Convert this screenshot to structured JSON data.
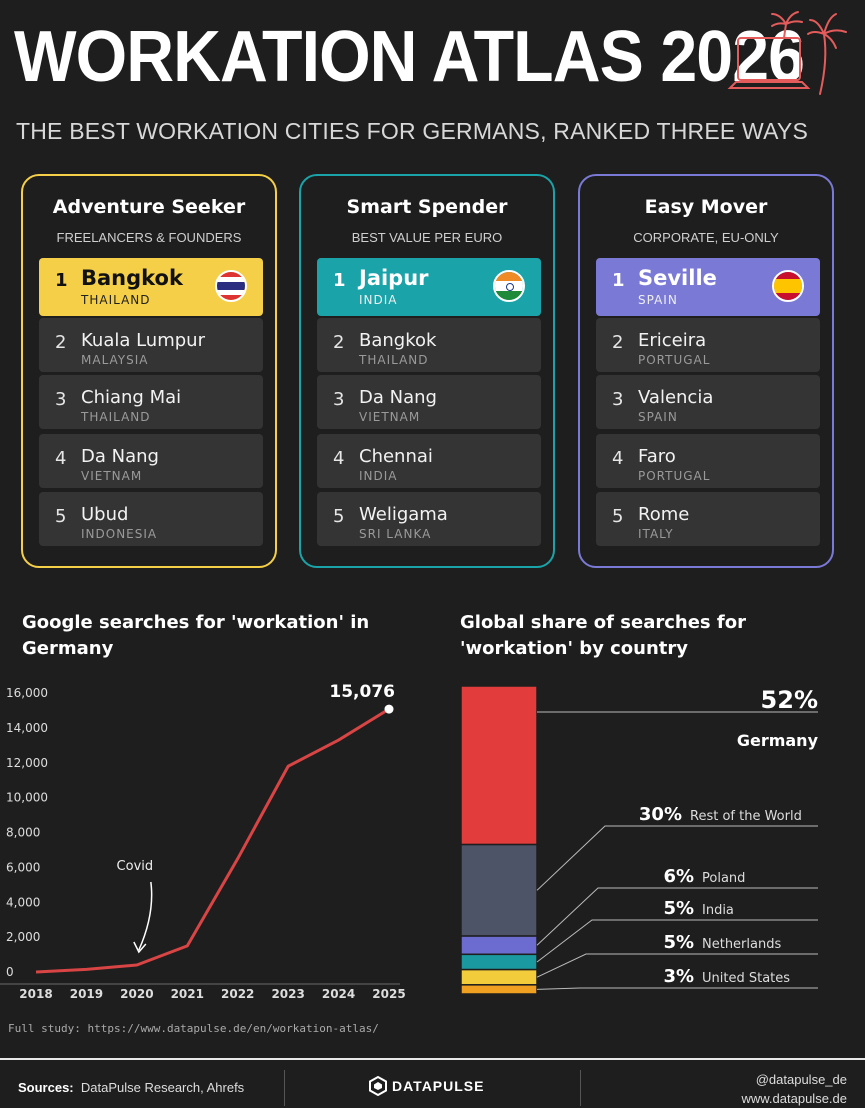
{
  "header": {
    "title": "WORKATION ATLAS 2026",
    "subtitle": "THE BEST WORKATION CITIES FOR GERMANS, RANKED THREE WAYS"
  },
  "colors": {
    "adventure": "#f4cf47",
    "spender": "#1aa3a8",
    "mover": "#7a7ad6",
    "line": "#d94444",
    "germany": "#e23c3c",
    "rest": "#4e5468",
    "poland": "#6b6bd0",
    "india": "#1a9aa0",
    "netherlands": "#f2cc3a",
    "united_states": "#f0a020"
  },
  "cards": [
    {
      "title": "Adventure Seeker",
      "subtitle": "FREELANCERS & FOUNDERS",
      "rows": [
        {
          "rank": "1",
          "city": "Bangkok",
          "country": "THAILAND",
          "flag": "thailand-flag-icon"
        },
        {
          "rank": "2",
          "city": "Kuala Lumpur",
          "country": "MALAYSIA"
        },
        {
          "rank": "3",
          "city": "Chiang Mai",
          "country": "THAILAND"
        },
        {
          "rank": "4",
          "city": "Da Nang",
          "country": "VIETNAM"
        },
        {
          "rank": "5",
          "city": "Ubud",
          "country": "INDONESIA"
        }
      ]
    },
    {
      "title": "Smart Spender",
      "subtitle": "BEST VALUE PER EURO",
      "rows": [
        {
          "rank": "1",
          "city": "Jaipur",
          "country": "INDIA",
          "flag": "india-flag-icon"
        },
        {
          "rank": "2",
          "city": "Bangkok",
          "country": "THAILAND"
        },
        {
          "rank": "3",
          "city": "Da Nang",
          "country": "VIETNAM"
        },
        {
          "rank": "4",
          "city": "Chennai",
          "country": "INDIA"
        },
        {
          "rank": "5",
          "city": "Weligama",
          "country": "SRI LANKA"
        }
      ]
    },
    {
      "title": "Easy Mover",
      "subtitle": "CORPORATE, EU-ONLY",
      "rows": [
        {
          "rank": "1",
          "city": "Seville",
          "country": "SPAIN",
          "flag": "spain-flag-icon"
        },
        {
          "rank": "2",
          "city": "Ericeira",
          "country": "PORTUGAL"
        },
        {
          "rank": "3",
          "city": "Valencia",
          "country": "SPAIN"
        },
        {
          "rank": "4",
          "city": "Faro",
          "country": "PORTUGAL"
        },
        {
          "rank": "5",
          "city": "Rome",
          "country": "ITALY"
        }
      ]
    }
  ],
  "chart_data": [
    {
      "type": "line",
      "title": "Google searches for 'workation' in Germany",
      "x": [
        "2018",
        "2019",
        "2020",
        "2021",
        "2022",
        "2023",
        "2024",
        "2025"
      ],
      "y": [
        0,
        150,
        400,
        1500,
        6500,
        11800,
        13300,
        15076
      ],
      "ylim": [
        0,
        16000
      ],
      "yticks": [
        "0",
        "2,000",
        "4,000",
        "6,000",
        "8,000",
        "10,000",
        "12,000",
        "14,000",
        "16,000"
      ],
      "end_label": "15,076",
      "annotation": {
        "text": "Covid",
        "x": "2020"
      },
      "grid": false
    },
    {
      "type": "bar",
      "stacked": true,
      "title": "Global share of searches for 'workation' by country",
      "categories": [
        "Germany",
        "Rest of the World",
        "Poland",
        "India",
        "Netherlands",
        "United States"
      ],
      "values": [
        52,
        30,
        6,
        5,
        5,
        3
      ],
      "labels": [
        "52%",
        "30%",
        "6%",
        "5%",
        "5%",
        "3%"
      ],
      "unit": "%"
    }
  ],
  "footnote": "Full study: https://www.datapulse.de/en/workation-atlas/",
  "footer": {
    "sources_label": "Sources:",
    "sources": "DataPulse Research, Ahrefs",
    "brand": "DATAPULSE",
    "handle": "@datapulse_de",
    "website": "www.datapulse.de"
  }
}
